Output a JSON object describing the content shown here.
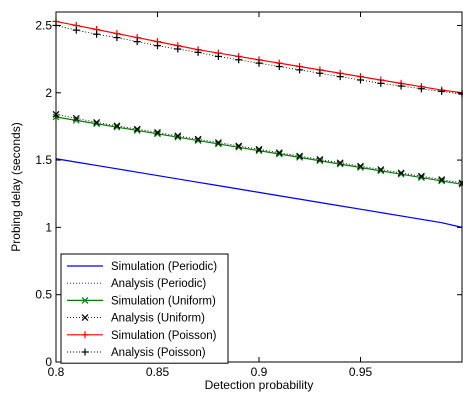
{
  "chart_data": {
    "type": "line",
    "title": "",
    "xlabel": "Detection probability",
    "ylabel": "Probing delay (seconds)",
    "xlim": [
      0.8,
      1.0
    ],
    "ylim": [
      0,
      2.6
    ],
    "xticks": [
      0.8,
      0.85,
      0.9,
      0.95,
      1.0
    ],
    "xtick_labels": [
      "0.8",
      "0.85",
      "0.9",
      "0.95",
      ""
    ],
    "yticks": [
      0,
      0.5,
      1,
      1.5,
      2,
      2.5
    ],
    "ytick_labels": [
      "0",
      "0.5",
      "1",
      "1.5",
      "2",
      "2.5"
    ],
    "grid": false,
    "legend_position": "bottom-left",
    "series": [
      {
        "name": "Simulation (Periodic)",
        "color": "#0000ff",
        "line": "solid",
        "marker": "none",
        "x": [
          0.8,
          0.81,
          0.82,
          0.83,
          0.84,
          0.85,
          0.86,
          0.87,
          0.88,
          0.89,
          0.9,
          0.91,
          0.92,
          0.93,
          0.94,
          0.95,
          0.96,
          0.97,
          0.98,
          0.99,
          1.0
        ],
        "y": [
          1.51,
          1.485,
          1.46,
          1.435,
          1.41,
          1.385,
          1.36,
          1.335,
          1.31,
          1.285,
          1.26,
          1.235,
          1.21,
          1.185,
          1.16,
          1.135,
          1.11,
          1.085,
          1.06,
          1.035,
          1.0
        ]
      },
      {
        "name": "Analysis (Periodic)",
        "color": "#0000ff",
        "line": "dotted",
        "marker": "none",
        "x": [
          0.8,
          0.81,
          0.82,
          0.83,
          0.84,
          0.85,
          0.86,
          0.87,
          0.88,
          0.89,
          0.9,
          0.91,
          0.92,
          0.93,
          0.94,
          0.95,
          0.96,
          0.97,
          0.98,
          0.99,
          1.0
        ],
        "y": [
          1.51,
          1.485,
          1.46,
          1.435,
          1.41,
          1.385,
          1.36,
          1.335,
          1.31,
          1.285,
          1.26,
          1.235,
          1.21,
          1.185,
          1.16,
          1.135,
          1.11,
          1.085,
          1.06,
          1.035,
          1.0
        ]
      },
      {
        "name": "Simulation (Uniform)",
        "color": "#008000",
        "line": "solid",
        "marker": "x",
        "x": [
          0.8,
          0.81,
          0.82,
          0.83,
          0.84,
          0.85,
          0.86,
          0.87,
          0.88,
          0.89,
          0.9,
          0.91,
          0.92,
          0.93,
          0.94,
          0.95,
          0.96,
          0.97,
          0.98,
          0.99,
          1.0
        ],
        "y": [
          1.82,
          1.795,
          1.77,
          1.745,
          1.72,
          1.695,
          1.67,
          1.645,
          1.62,
          1.595,
          1.57,
          1.545,
          1.52,
          1.495,
          1.47,
          1.445,
          1.42,
          1.395,
          1.37,
          1.345,
          1.32
        ]
      },
      {
        "name": "Analysis (Uniform)",
        "color": "#000000",
        "line": "dotted",
        "marker": "x",
        "x": [
          0.8,
          0.81,
          0.82,
          0.83,
          0.84,
          0.85,
          0.86,
          0.87,
          0.88,
          0.89,
          0.9,
          0.91,
          0.92,
          0.93,
          0.94,
          0.95,
          0.96,
          0.97,
          0.98,
          0.99,
          1.0
        ],
        "y": [
          1.84,
          1.81,
          1.78,
          1.755,
          1.73,
          1.705,
          1.68,
          1.655,
          1.63,
          1.605,
          1.58,
          1.555,
          1.53,
          1.505,
          1.48,
          1.455,
          1.43,
          1.405,
          1.38,
          1.355,
          1.33
        ]
      },
      {
        "name": "Simulation (Poisson)",
        "color": "#ff0000",
        "line": "solid",
        "marker": "+",
        "x": [
          0.8,
          0.81,
          0.82,
          0.83,
          0.84,
          0.85,
          0.86,
          0.87,
          0.88,
          0.89,
          0.9,
          0.91,
          0.92,
          0.93,
          0.94,
          0.95,
          0.96,
          0.97,
          0.98,
          0.99,
          1.0
        ],
        "y": [
          2.53,
          2.5,
          2.47,
          2.44,
          2.41,
          2.38,
          2.35,
          2.32,
          2.295,
          2.27,
          2.245,
          2.22,
          2.195,
          2.17,
          2.145,
          2.12,
          2.095,
          2.07,
          2.045,
          2.02,
          2.0
        ]
      },
      {
        "name": "Analysis (Poisson)",
        "color": "#000000",
        "line": "dotted",
        "marker": "+",
        "x": [
          0.8,
          0.81,
          0.82,
          0.83,
          0.84,
          0.85,
          0.86,
          0.87,
          0.88,
          0.89,
          0.9,
          0.91,
          0.92,
          0.93,
          0.94,
          0.95,
          0.96,
          0.97,
          0.98,
          0.99,
          1.0
        ],
        "y": [
          2.5,
          2.465,
          2.435,
          2.41,
          2.38,
          2.35,
          2.325,
          2.3,
          2.27,
          2.245,
          2.22,
          2.195,
          2.17,
          2.145,
          2.12,
          2.095,
          2.07,
          2.05,
          2.03,
          2.01,
          1.99
        ]
      }
    ]
  }
}
